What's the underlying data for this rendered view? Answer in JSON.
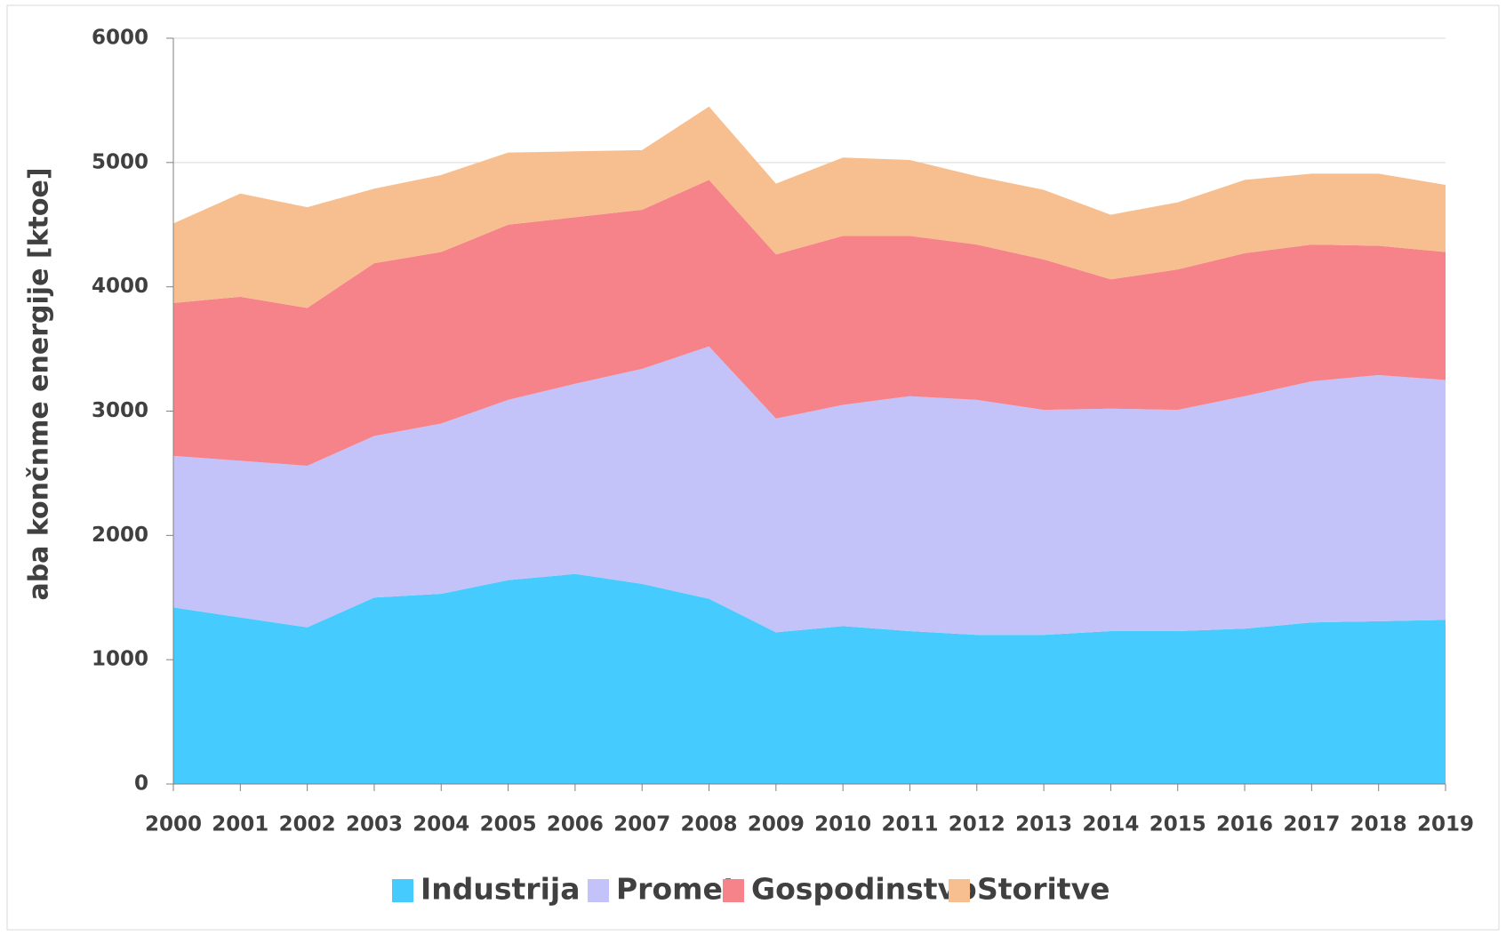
{
  "chart_data": {
    "type": "stacked_area",
    "y_label": "aba končnme energije [ktoe]",
    "categories": [
      "2000",
      "2001",
      "2002",
      "2003",
      "2004",
      "2005",
      "2006",
      "2007",
      "2008",
      "2009",
      "2010",
      "2011",
      "2012",
      "2013",
      "2014",
      "2015",
      "2016",
      "2017",
      "2018",
      "2019"
    ],
    "series": [
      {
        "name": "Industrija",
        "color": "#45cbfd",
        "values": [
          1420,
          1340,
          1260,
          1500,
          1530,
          1640,
          1690,
          1610,
          1490,
          1220,
          1270,
          1230,
          1200,
          1200,
          1230,
          1230,
          1250,
          1300,
          1310,
          1320
        ]
      },
      {
        "name": "Promet",
        "color": "#c3c3fa",
        "values": [
          1220,
          1260,
          1300,
          1300,
          1370,
          1450,
          1530,
          1730,
          2030,
          1720,
          1780,
          1890,
          1890,
          1810,
          1790,
          1780,
          1870,
          1940,
          1980,
          1930
        ]
      },
      {
        "name": "Gospodinstvo",
        "color": "#f6838a",
        "values": [
          1230,
          1320,
          1270,
          1390,
          1380,
          1410,
          1340,
          1280,
          1340,
          1320,
          1360,
          1290,
          1250,
          1210,
          1040,
          1130,
          1150,
          1100,
          1040,
          1030
        ]
      },
      {
        "name": "Storitve",
        "color": "#f7bf8f",
        "values": [
          640,
          830,
          810,
          600,
          620,
          580,
          530,
          480,
          590,
          570,
          630,
          610,
          550,
          560,
          520,
          540,
          590,
          570,
          580,
          540
        ]
      }
    ],
    "ylim": [
      0,
      6000
    ],
    "yticks": [
      0,
      1000,
      2000,
      3000,
      4000,
      5000,
      6000
    ],
    "grid": true,
    "legend": "bottom"
  }
}
